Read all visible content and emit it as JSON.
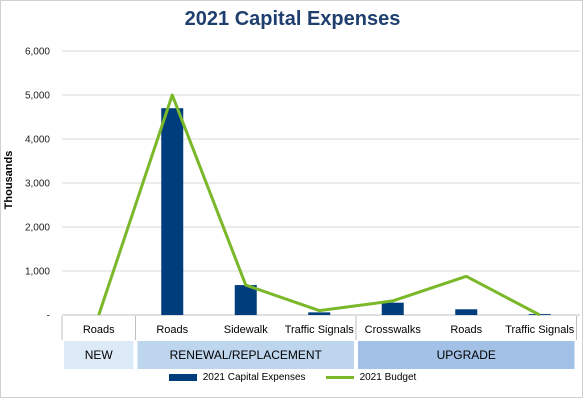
{
  "chart_data": {
    "type": "bar",
    "title": "2021 Capital Expenses",
    "ylabel": "Thousands",
    "ylim": [
      0,
      6000
    ],
    "yticks": [
      "-",
      "1,000",
      "2,000",
      "3,000",
      "4,000",
      "5,000",
      "6,000"
    ],
    "grid": true,
    "legend_position": "bottom",
    "categories": [
      "Roads",
      "Roads",
      "Sidewalk",
      "Traffic Signals",
      "Crosswalks",
      "Roads",
      "Traffic Signals"
    ],
    "groups": [
      {
        "label": "NEW",
        "span": [
          0,
          0
        ],
        "color": "#dce9f6"
      },
      {
        "label": "RENEWAL/REPLACEMENT",
        "span": [
          1,
          3
        ],
        "color": "#bed5ee"
      },
      {
        "label": "UPGRADE",
        "span": [
          4,
          6
        ],
        "color": "#a3c1e6"
      }
    ],
    "series": [
      {
        "name": "2021 Capital Expenses",
        "kind": "bar",
        "color": "#003d7c",
        "values": [
          0,
          4700,
          680,
          60,
          280,
          130,
          20
        ]
      },
      {
        "name": "2021 Budget",
        "kind": "line",
        "color": "#7ab829",
        "values": [
          0,
          5000,
          680,
          100,
          320,
          880,
          0
        ]
      }
    ]
  }
}
